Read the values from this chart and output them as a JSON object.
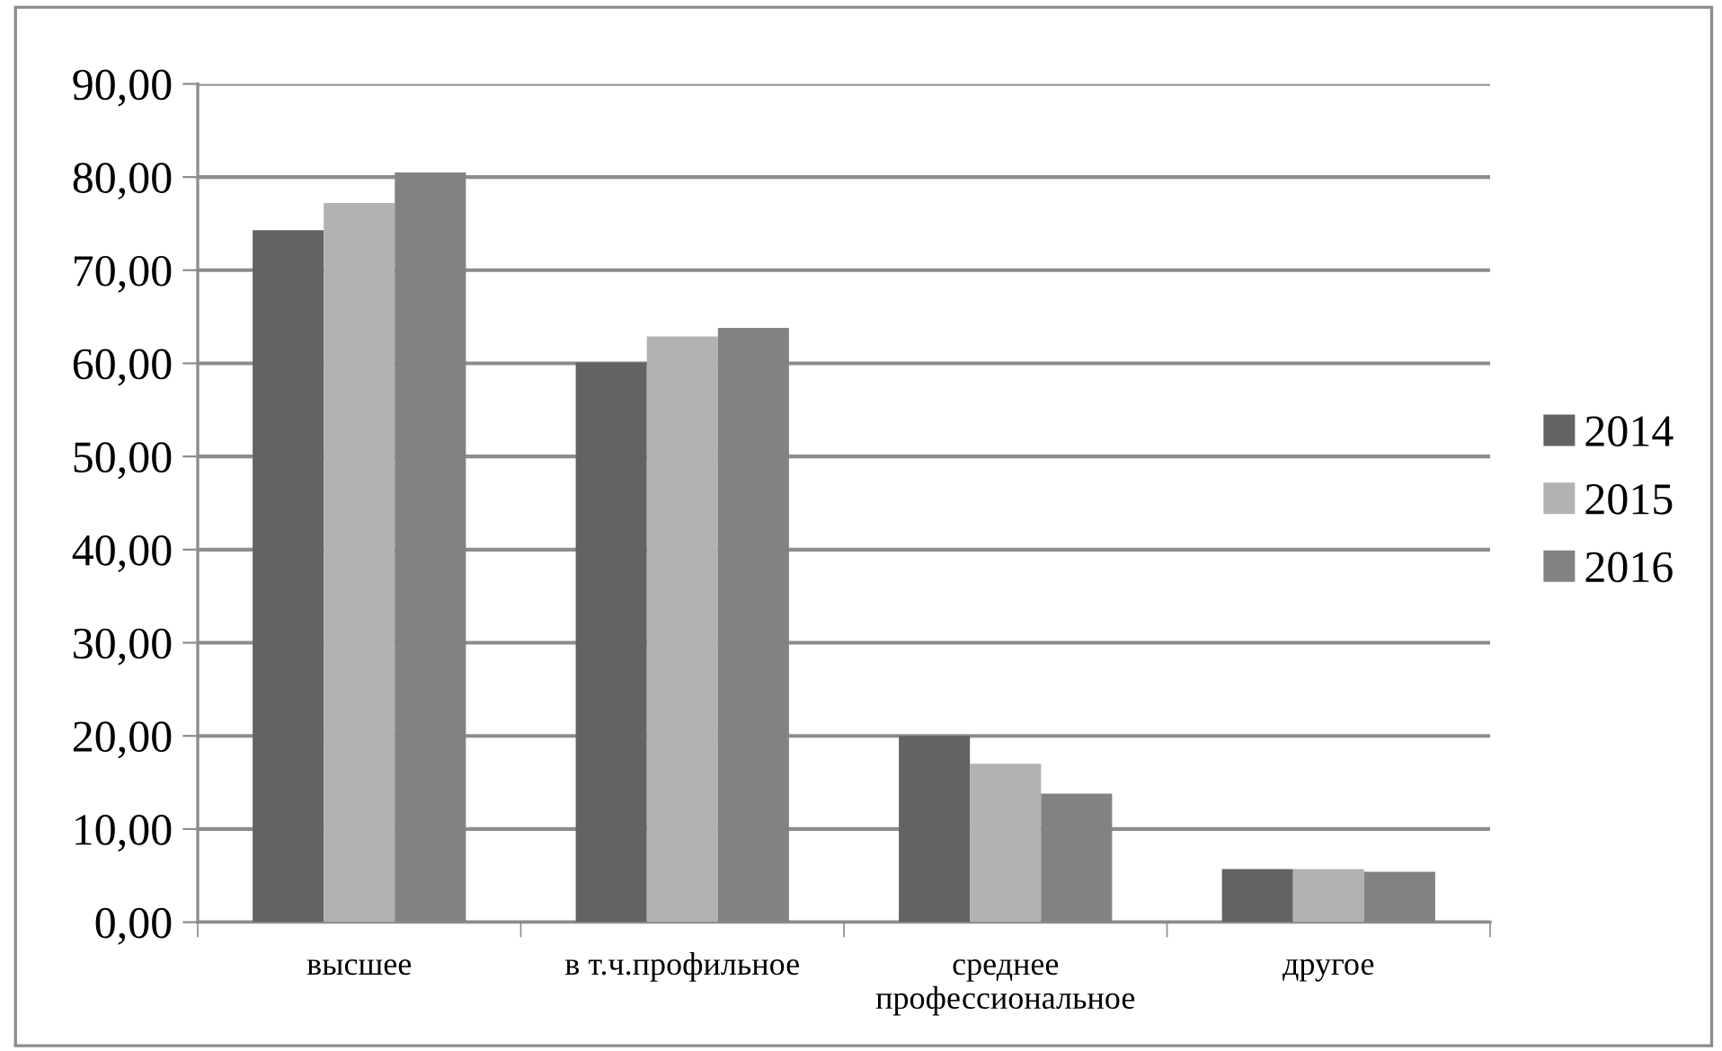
{
  "chart_data": {
    "type": "bar",
    "categories": [
      "высшее",
      "в т.ч.профильное",
      "среднее\nпрофессиональное",
      "другое"
    ],
    "series": [
      {
        "name": "2014",
        "color": "#636363",
        "values": [
          74.3,
          60.1,
          20.0,
          5.7
        ]
      },
      {
        "name": "2015",
        "color": "#b2b2b2",
        "values": [
          77.2,
          62.9,
          17.0,
          5.7
        ]
      },
      {
        "name": "2016",
        "color": "#828282",
        "values": [
          80.5,
          63.8,
          13.8,
          5.4
        ]
      }
    ],
    "ylim": [
      0,
      90
    ],
    "yticks": [
      {
        "value": 0,
        "label": "0,00"
      },
      {
        "value": 10,
        "label": "10,00"
      },
      {
        "value": 20,
        "label": "20,00"
      },
      {
        "value": 30,
        "label": "30,00"
      },
      {
        "value": 40,
        "label": "40,00"
      },
      {
        "value": 50,
        "label": "50,00"
      },
      {
        "value": 60,
        "label": "60,00"
      },
      {
        "value": 70,
        "label": "70,00"
      },
      {
        "value": 80,
        "label": "80,00"
      },
      {
        "value": 90,
        "label": "90,00"
      }
    ],
    "grid": "y",
    "legend": "right"
  }
}
